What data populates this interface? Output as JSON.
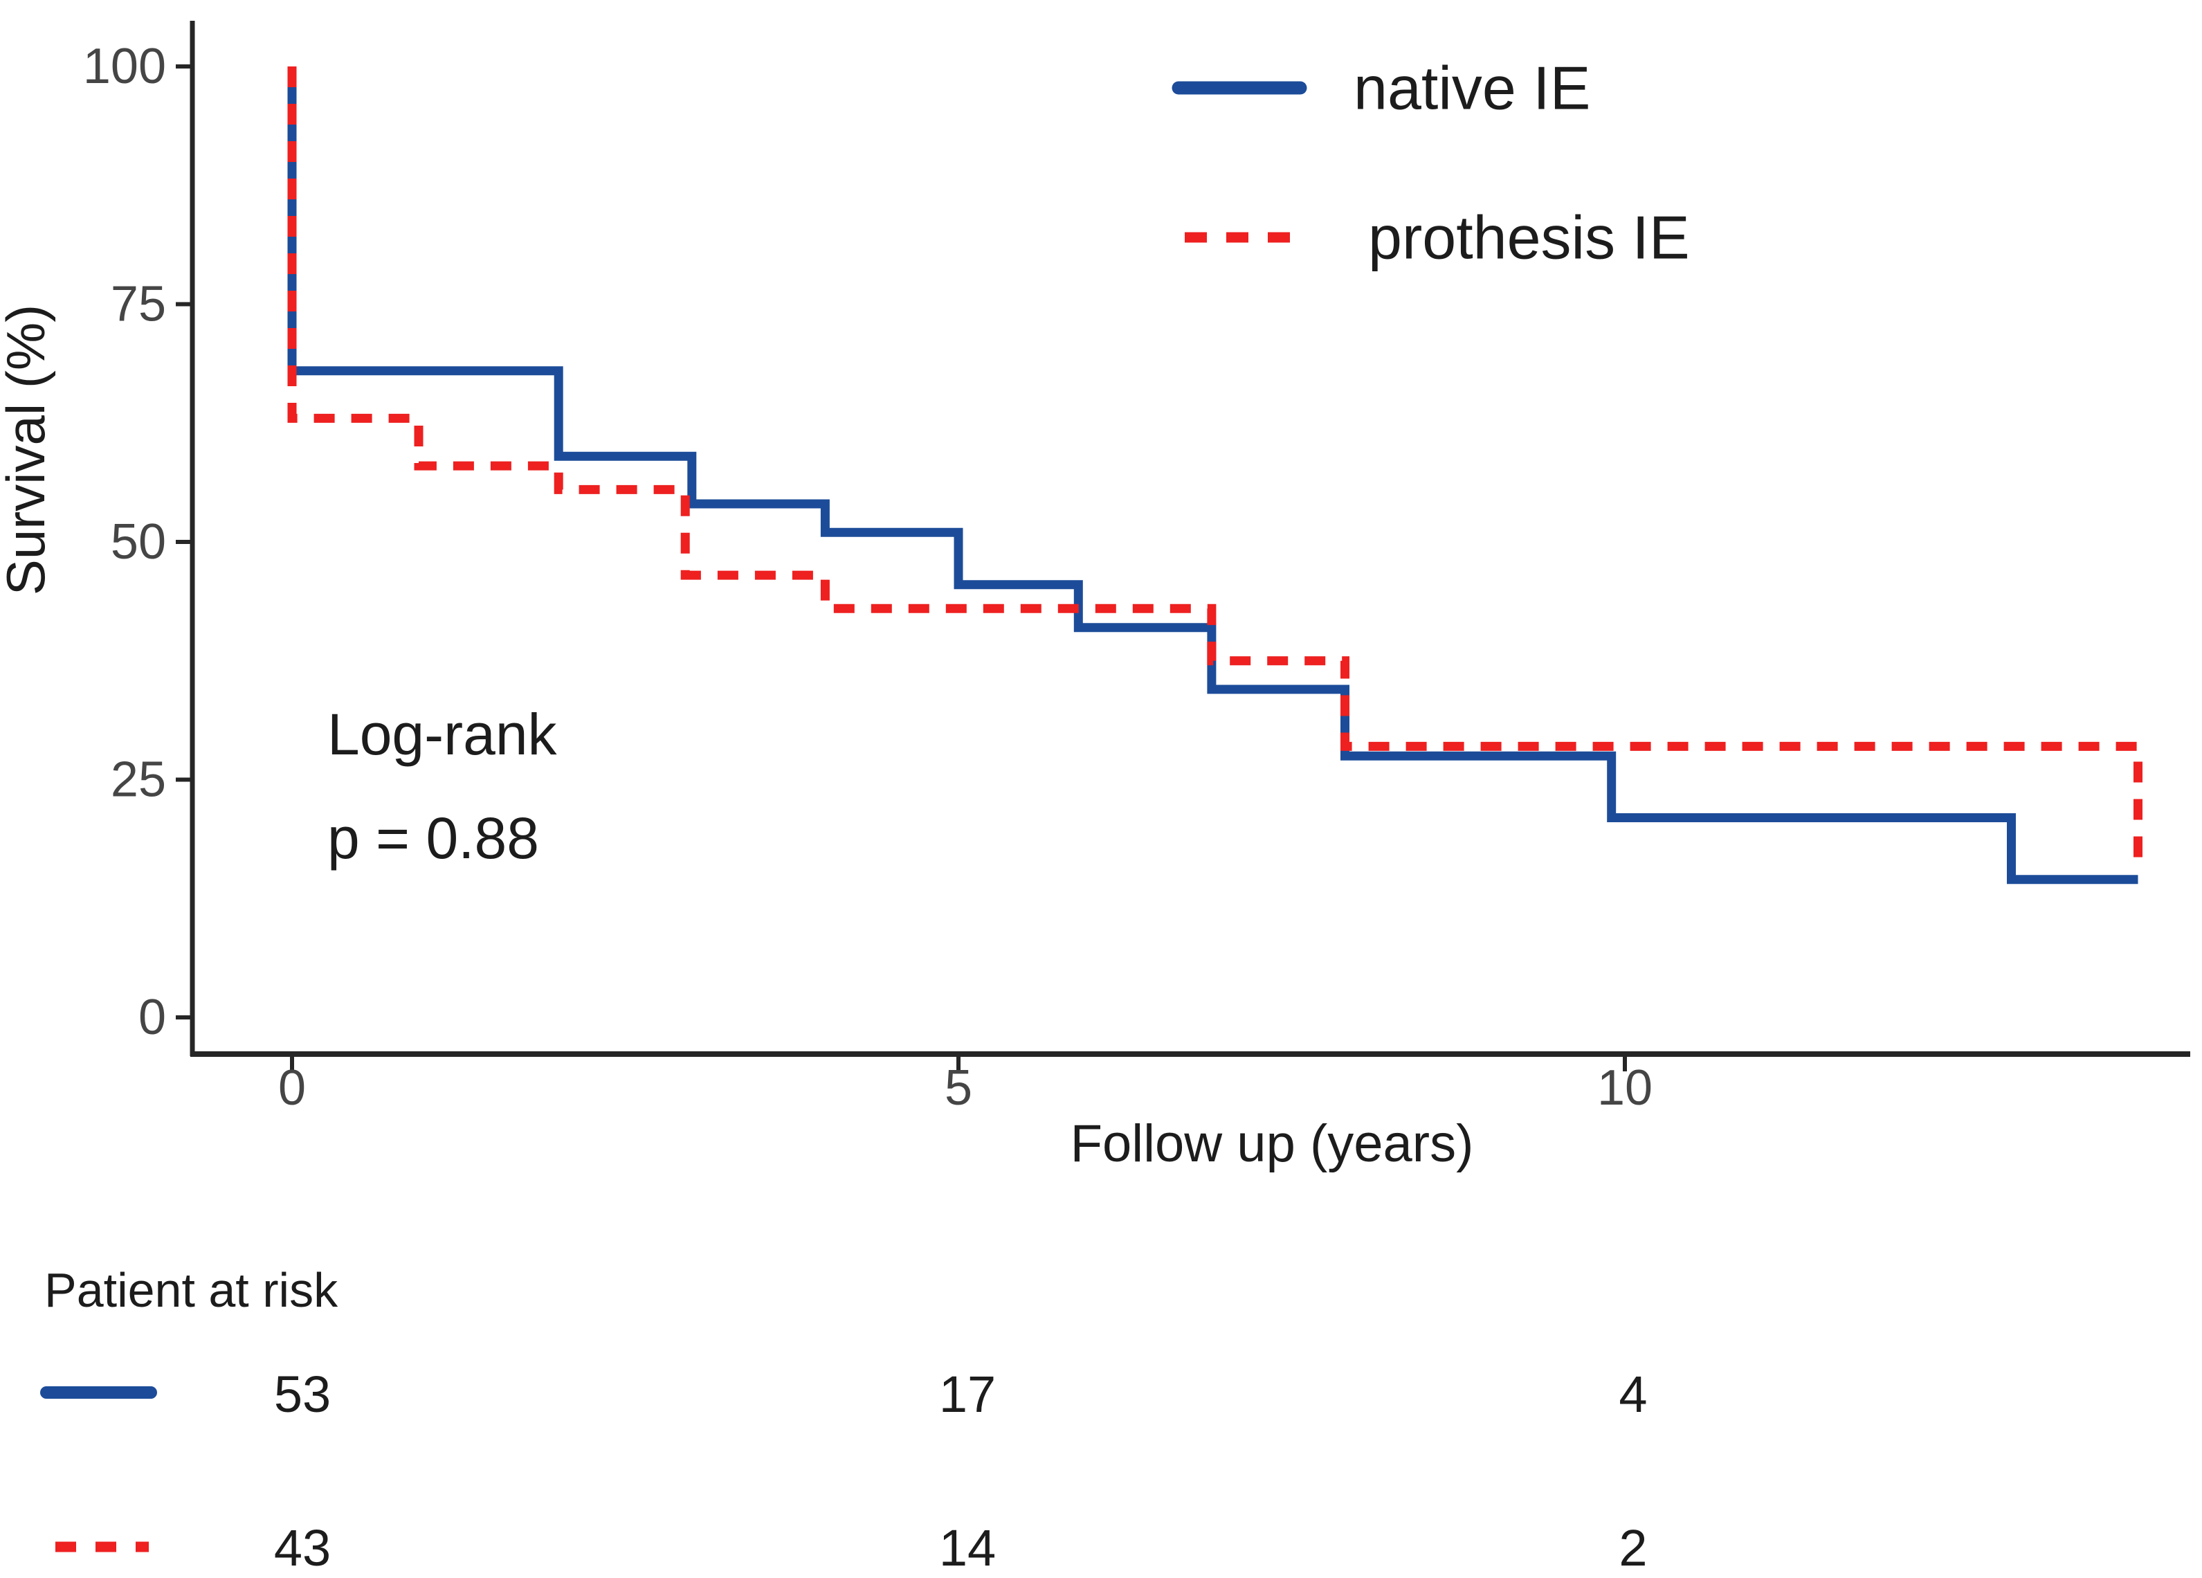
{
  "figure": {
    "background": "#ffffff"
  },
  "chart_data": {
    "type": "line",
    "subtype": "kaplan-meier-step",
    "title": "",
    "xlabel": "Follow up (years)",
    "ylabel": "Survival (%)",
    "xlim": [
      0,
      14.2
    ],
    "ylim": [
      0,
      100
    ],
    "grid": false,
    "legend_position": "top-right-inside",
    "x_ticks": [
      0,
      5,
      10
    ],
    "x_tick_labels": [
      "0",
      "5",
      "10"
    ],
    "y_ticks": [
      100,
      75,
      50,
      25,
      0
    ],
    "y_tick_labels": [
      "100",
      "75",
      "50",
      "25",
      "0"
    ],
    "series": [
      {
        "name": "native IE",
        "color": "#1c4c99",
        "line_style": "solid",
        "step_points": [
          [
            0,
            100
          ],
          [
            0,
            68
          ],
          [
            2,
            68
          ],
          [
            2,
            59
          ],
          [
            3,
            59
          ],
          [
            3,
            54
          ],
          [
            4,
            54
          ],
          [
            4,
            51
          ],
          [
            5,
            51
          ],
          [
            5,
            45.5
          ],
          [
            5.9,
            45.5
          ],
          [
            5.9,
            41
          ],
          [
            6.9,
            41
          ],
          [
            6.9,
            34.5
          ],
          [
            7.9,
            34.5
          ],
          [
            7.9,
            27.5
          ],
          [
            9.9,
            27.5
          ],
          [
            9.9,
            21
          ],
          [
            12.9,
            21
          ],
          [
            12.9,
            14.5
          ],
          [
            13.85,
            14.5
          ]
        ]
      },
      {
        "name": "prothesis IE",
        "color": "#ee2020",
        "line_style": "dashed",
        "step_points": [
          [
            0,
            100
          ],
          [
            0,
            63
          ],
          [
            0.95,
            63
          ],
          [
            0.95,
            58
          ],
          [
            2,
            58
          ],
          [
            2,
            55.5
          ],
          [
            2.95,
            55.5
          ],
          [
            2.95,
            46.5
          ],
          [
            4,
            46.5
          ],
          [
            4,
            43
          ],
          [
            6.9,
            43
          ],
          [
            6.9,
            37.5
          ],
          [
            7.9,
            37.5
          ],
          [
            7.9,
            28.5
          ],
          [
            13.85,
            28.5
          ],
          [
            13.85,
            15.5
          ]
        ]
      }
    ],
    "annotations": [
      {
        "text": "Log-rank"
      },
      {
        "text": "p = 0.88"
      }
    ]
  },
  "risk_table": {
    "title": "Patient at risk",
    "time_points": [
      0,
      5,
      10
    ],
    "rows": [
      {
        "series": "native IE",
        "line_style": "solid",
        "color": "#1c4c99",
        "counts": [
          "53",
          "17",
          "4"
        ]
      },
      {
        "series": "prothesis IE",
        "line_style": "dashed",
        "color": "#ee2020",
        "counts": [
          "43",
          "14",
          "2"
        ]
      }
    ]
  }
}
